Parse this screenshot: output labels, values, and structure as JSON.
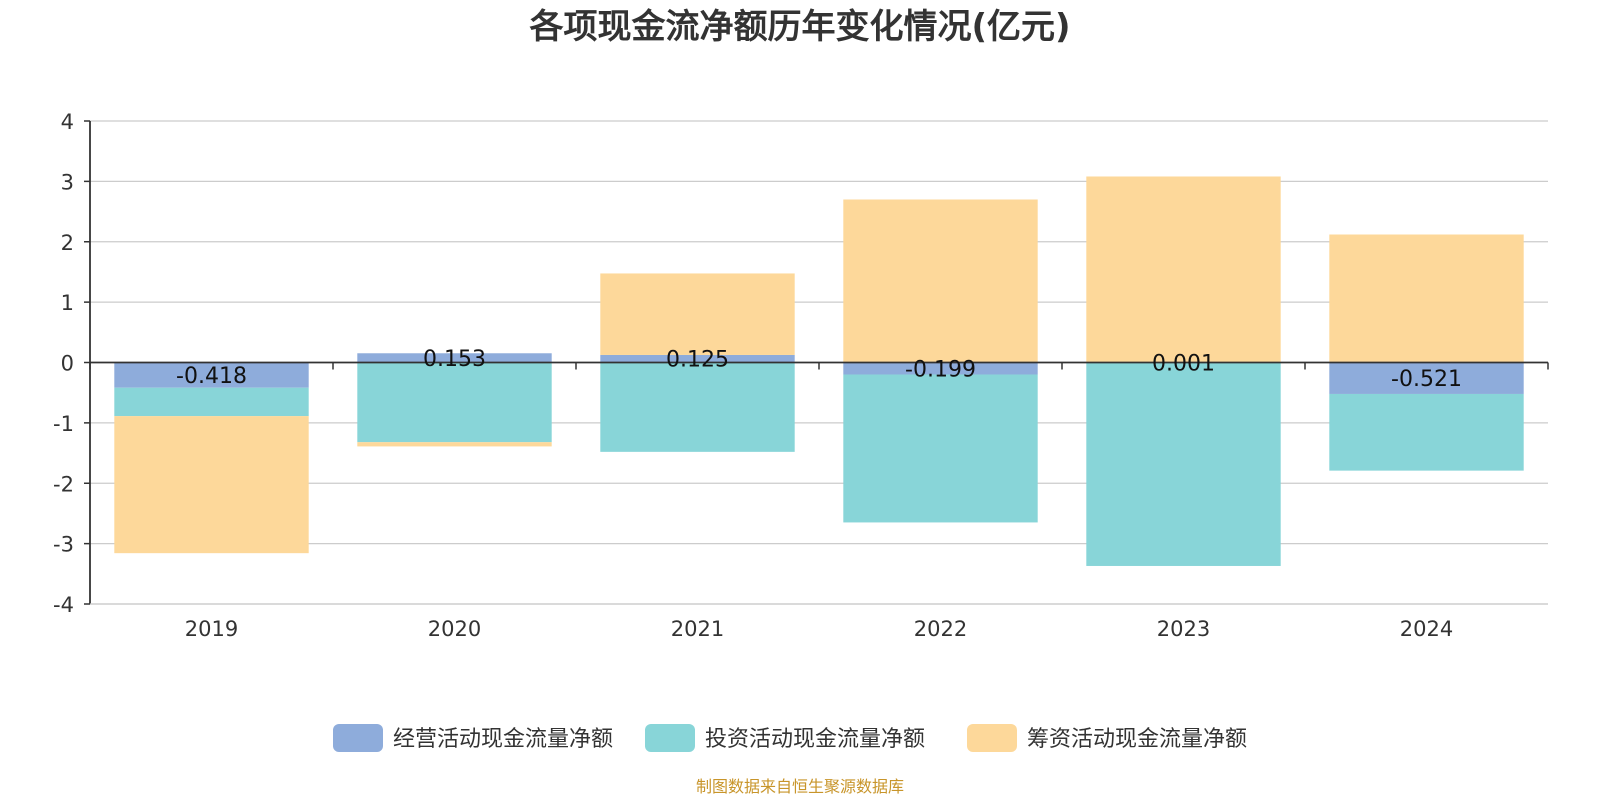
{
  "chart_data": {
    "type": "bar",
    "stacked": true,
    "title": "各项现金流净额历年变化情况(亿元)",
    "xlabel": "",
    "ylabel": "",
    "categories": [
      "2019",
      "2020",
      "2021",
      "2022",
      "2023",
      "2024"
    ],
    "ylim": [
      -4,
      4
    ],
    "yticks": [
      4,
      3,
      2,
      1,
      0,
      -1,
      -2,
      -3,
      -4
    ],
    "grid": true,
    "legend_position": "bottom",
    "series": [
      {
        "name": "经营活动现金流量净额",
        "color": "#8eacdb",
        "values": [
          -0.418,
          0.153,
          0.125,
          -0.199,
          0.001,
          -0.521
        ],
        "labels": [
          "-0.418",
          "0.153",
          "0.125",
          "-0.199",
          "0.001",
          "-0.521"
        ]
      },
      {
        "name": "投资活动现金流量净额",
        "color": "#88d5d8",
        "values": [
          -0.47,
          -1.32,
          -1.48,
          -2.45,
          -3.37,
          -1.27
        ]
      },
      {
        "name": "筹资活动现金流量净额",
        "color": "#fdd89a",
        "values": [
          -2.27,
          -0.07,
          1.35,
          2.7,
          3.08,
          2.12
        ]
      }
    ],
    "source": "制图数据来自恒生聚源数据库",
    "source_color": "#c8952a",
    "axis_color": "#333333",
    "grid_color": "#cccccc"
  }
}
